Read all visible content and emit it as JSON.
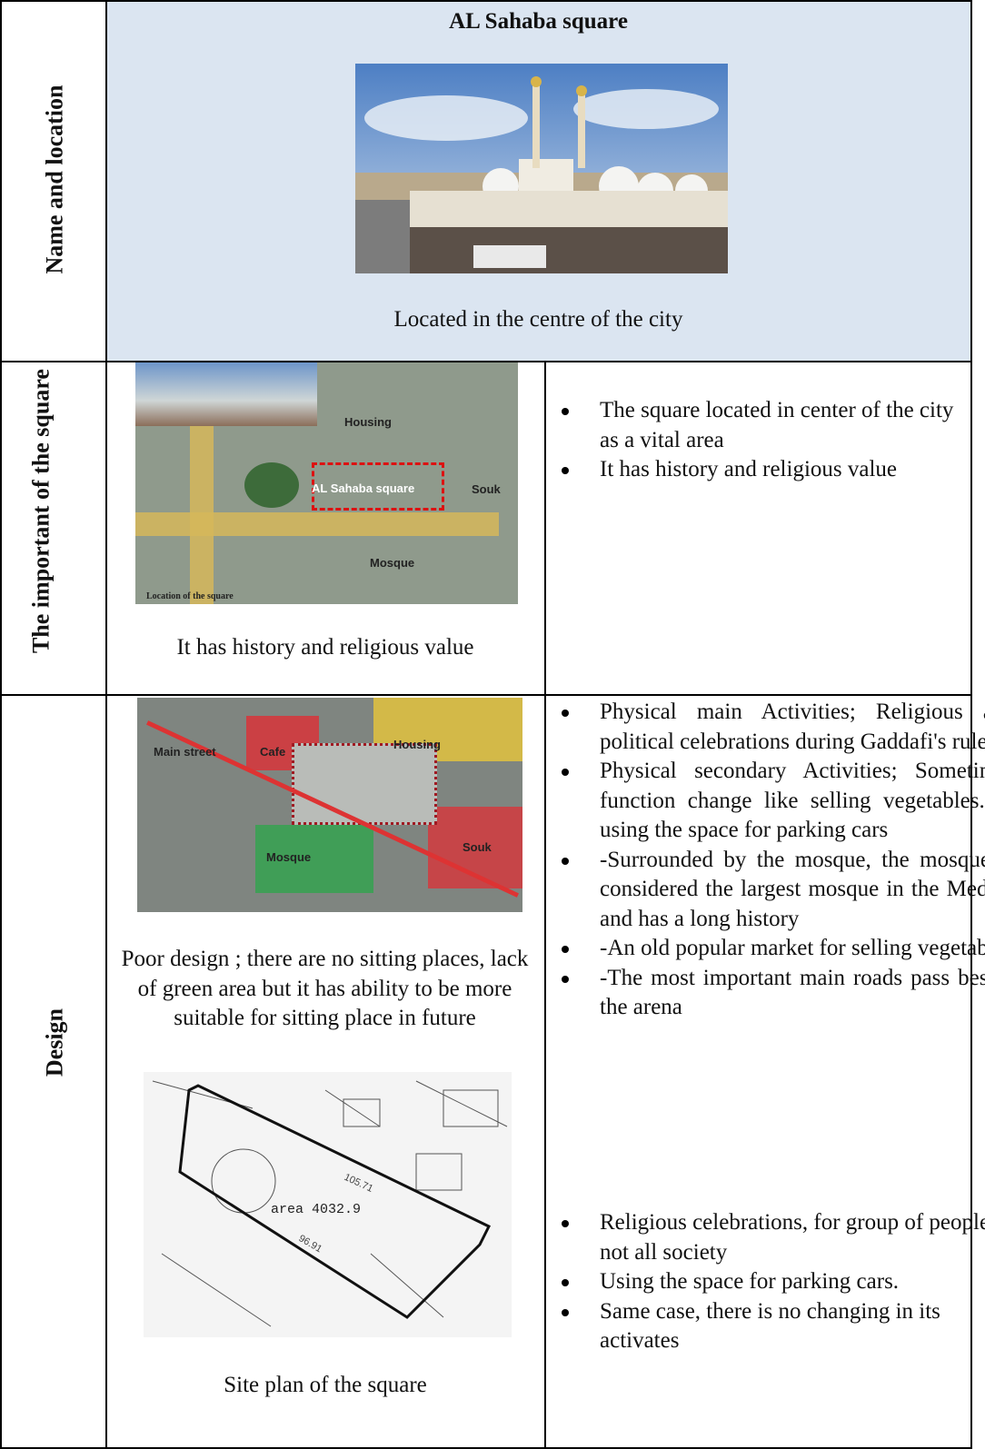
{
  "rows": [
    {
      "header": "Name and location",
      "title": "AL Sahaba square",
      "caption": "Located in the centre of the city"
    },
    {
      "header": "The important of the square",
      "map_labels": [
        "Housing",
        "AL Sahaba square",
        "Souk",
        "Mosque"
      ],
      "map_caption": "Location of the square",
      "caption": "It has history and religious  value",
      "bullets": [
        "The square located in center of the city as a vital area",
        "It has history and religious  value"
      ]
    },
    {
      "header": "Design",
      "map_labels": [
        "Main street",
        "Cafe",
        "Housing",
        "Mosque",
        "Souk"
      ],
      "caption": "Poor design ; there are  no sitting places, lack of green area but it has ability to be more suitable for sitting place in future",
      "plan_labels": [
        "area  4032.9",
        "105.71",
        "96.91"
      ],
      "plan_caption": "Site plan of the square",
      "bullets": [
        "Physical main Activities; Religious and political celebrations during Gaddafi's rule.",
        "Physical secondary Activities; Sometimes function change like selling vegetables. or using the space for parking cars",
        "-Surrounded by the mosque, the mosque is considered the largest mosque in the Medina and has a long history",
        "-An old popular market for selling vegetables",
        "-The most important main roads pass beside the arena"
      ],
      "bullets2": [
        "Religious celebrations, for group of people not all society",
        "Using the space for parking cars.",
        "Same case, there is no changing in its activates"
      ]
    }
  ]
}
